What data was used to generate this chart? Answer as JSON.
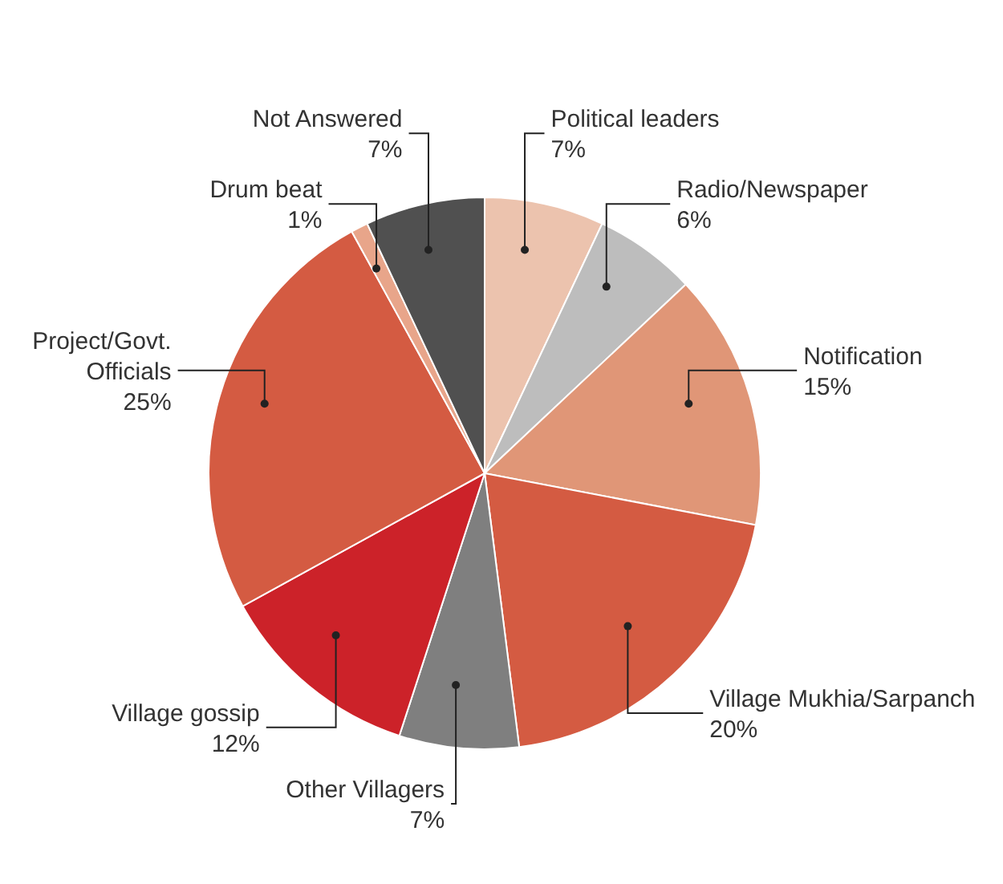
{
  "chart_data": {
    "type": "pie",
    "categories": [
      "Political leaders",
      "Radio/Newspaper",
      "Notification",
      "Village Mukhia/Sarpanch",
      "Other Villagers",
      "Village gossip",
      "Project/Govt. Officials",
      "Drum beat",
      "Not Answered"
    ],
    "values": [
      7,
      6,
      15,
      20,
      7,
      12,
      25,
      1,
      7
    ],
    "value_labels": [
      "7%",
      "6%",
      "15%",
      "20%",
      "7%",
      "12%",
      "25%",
      "1%",
      "7%"
    ],
    "colors": [
      "#ecc3ae",
      "#bdbdbd",
      "#e09677",
      "#d45b42",
      "#7f7f7f",
      "#cc2229",
      "#d45b42",
      "#e8a58a",
      "#505050"
    ]
  }
}
